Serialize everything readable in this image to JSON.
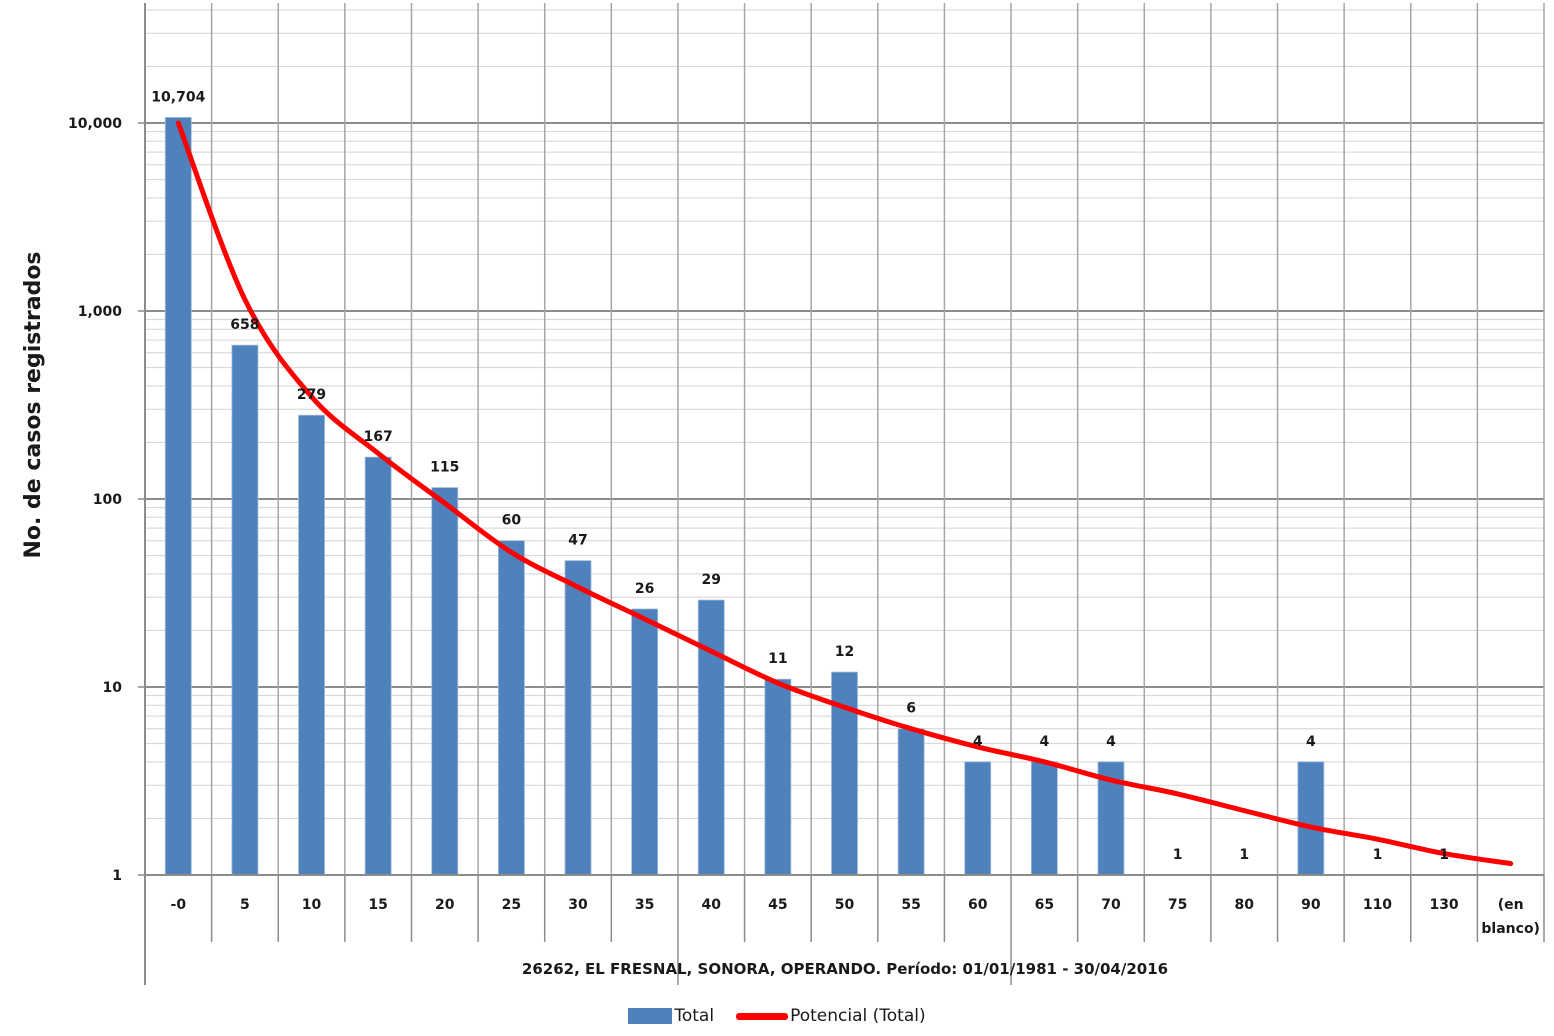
{
  "chart_data": {
    "type": "bar",
    "scale_y": "log",
    "ylabel": "No. de casos registrados",
    "xlabel": "26262, EL FRESNAL, SONORA, OPERANDO. Período: 01/01/1981 - 30/04/2016",
    "ylim": [
      1,
      50000
    ],
    "y_ticks": [
      1,
      10,
      100,
      1000,
      10000
    ],
    "y_tick_labels": [
      "1",
      "10",
      "100",
      "1,000",
      "10,000"
    ],
    "categories": [
      "-0",
      "5",
      "10",
      "15",
      "20",
      "25",
      "30",
      "35",
      "40",
      "45",
      "50",
      "55",
      "60",
      "65",
      "70",
      "75",
      "80",
      "90",
      "110",
      "130",
      "(en blanco)"
    ],
    "category_lines": [
      [
        "-0"
      ],
      [
        "5"
      ],
      [
        "10"
      ],
      [
        "15"
      ],
      [
        "20"
      ],
      [
        "25"
      ],
      [
        "30"
      ],
      [
        "35"
      ],
      [
        "40"
      ],
      [
        "45"
      ],
      [
        "50"
      ],
      [
        "55"
      ],
      [
        "60"
      ],
      [
        "65"
      ],
      [
        "70"
      ],
      [
        "75"
      ],
      [
        "80"
      ],
      [
        "90"
      ],
      [
        "110"
      ],
      [
        "130"
      ],
      [
        "(en",
        "blanco)"
      ]
    ],
    "series": [
      {
        "name": "Total",
        "color": "#4f81bd",
        "values": [
          10704,
          658,
          279,
          167,
          115,
          60,
          47,
          26,
          29,
          11,
          12,
          6,
          4,
          4,
          4,
          1,
          1,
          4,
          1,
          1,
          null
        ],
        "data_labels": [
          "10,704",
          "658",
          "279",
          "167",
          "115",
          "60",
          "47",
          "26",
          "29",
          "11",
          "12",
          "6",
          "4",
          "4",
          "4",
          "1",
          "1",
          "4",
          "1",
          "1",
          ""
        ]
      }
    ],
    "trendline": {
      "name": "Potencial (Total)",
      "type": "power",
      "color": "#ff0000",
      "values": [
        10000,
        1150,
        350,
        175,
        95,
        52,
        34,
        23,
        15.5,
        10.5,
        7.8,
        6.0,
        4.8,
        4.0,
        3.2,
        2.7,
        2.2,
        1.8,
        1.55,
        1.3,
        1.15
      ]
    },
    "grid": true,
    "legend_position": "bottom"
  },
  "legend": {
    "items": [
      {
        "label": "Total",
        "color": "#4f81bd"
      },
      {
        "label": "Potencial (Total)",
        "color": "#ff0000"
      }
    ]
  }
}
